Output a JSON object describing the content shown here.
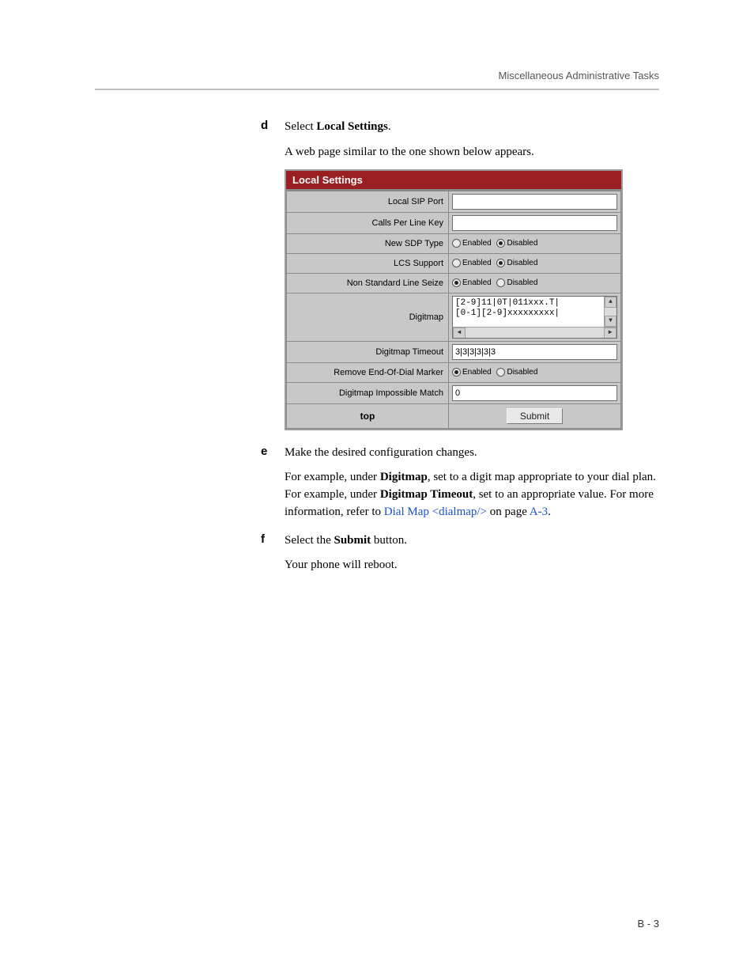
{
  "header": {
    "section_title": "Miscellaneous Administrative Tasks"
  },
  "footer": {
    "page_number": "B - 3"
  },
  "steps": {
    "d": {
      "letter": "d",
      "line1_pre": "Select ",
      "line1_bold": "Local Settings",
      "line1_post": ".",
      "line2": "A web page similar to the one shown below appears."
    },
    "e": {
      "letter": "e",
      "line1": "Make the desired configuration changes.",
      "para_pre": "For example, under ",
      "para_b1": "Digitmap",
      "para_mid1": ", set to a digit map appropriate to your dial plan. For example, under ",
      "para_b2": "Digitmap Timeout",
      "para_mid2": ", set to an appropriate value. For more information, refer to ",
      "link1": "Dial Map <dialmap/>",
      "para_mid3": " on page ",
      "link2": "A-3",
      "para_post": "."
    },
    "f": {
      "letter": "f",
      "line1_pre": "Select the ",
      "line1_bold": "Submit",
      "line1_post": " button.",
      "line2": "Your phone will reboot."
    }
  },
  "shot": {
    "title": "Local Settings",
    "rows": {
      "local_sip_port": {
        "label": "Local SIP Port",
        "value": ""
      },
      "calls_per_line": {
        "label": "Calls Per Line Key",
        "value": ""
      },
      "new_sdp": {
        "label": "New SDP Type",
        "enabled": "Enabled",
        "disabled": "Disabled",
        "selected": "disabled"
      },
      "lcs": {
        "label": "LCS Support",
        "enabled": "Enabled",
        "disabled": "Disabled",
        "selected": "disabled"
      },
      "nsls": {
        "label": "Non Standard Line Seize",
        "enabled": "Enabled",
        "disabled": "Disabled",
        "selected": "enabled"
      },
      "digitmap": {
        "label": "Digitmap",
        "value": "[2-9]11|0T|011xxx.T|\n[0-1][2-9]xxxxxxxxx|"
      },
      "digitmap_to": {
        "label": "Digitmap Timeout",
        "value": "3|3|3|3|3|3"
      },
      "remove_eod": {
        "label": "Remove End-Of-Dial Marker",
        "enabled": "Enabled",
        "disabled": "Disabled",
        "selected": "enabled"
      },
      "dim": {
        "label": "Digitmap Impossible Match",
        "value": "0"
      }
    },
    "footer": {
      "top": "top",
      "submit": "Submit"
    }
  }
}
